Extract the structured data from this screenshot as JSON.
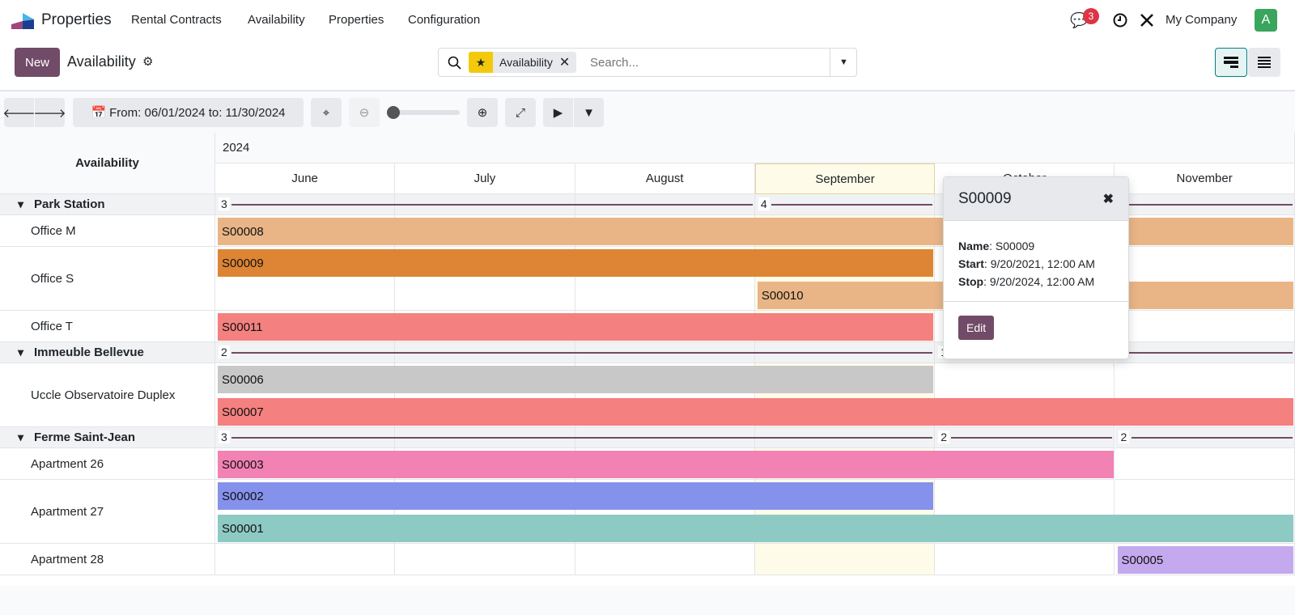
{
  "nav": {
    "brand": "Properties",
    "menu": [
      "Rental Contracts",
      "Availability",
      "Properties",
      "Configuration"
    ],
    "messages_count": "3",
    "company": "My Company",
    "avatar": "A",
    "avatar_color": "#3aa55d"
  },
  "control": {
    "new_label": "New",
    "title": "Availability",
    "facet_label": "Availability",
    "search_placeholder": "Search..."
  },
  "toolbar": {
    "range_label": "From: 06/01/2024 to: 11/30/2024",
    "zoom_level": 0
  },
  "gantt": {
    "row_header": "Availability",
    "year": "2024",
    "months": [
      "June",
      "July",
      "August",
      "September",
      "October",
      "November"
    ],
    "highlight_month": 3,
    "rows": [
      {
        "type": "group",
        "label": "Park Station",
        "aggs": [
          {
            "label": "3",
            "from": 0,
            "to": 3
          },
          {
            "label": "4",
            "from": 3,
            "to": 4
          },
          {
            "label": "",
            "from": 4,
            "to": 6
          }
        ]
      },
      {
        "type": "row",
        "label": "Office M",
        "lanes": 1,
        "bars": [
          {
            "name": "S00008",
            "from": 0,
            "to": 6,
            "lane": 0,
            "color": "#e9b586"
          }
        ]
      },
      {
        "type": "row",
        "label": "Office S",
        "lanes": 2,
        "bars": [
          {
            "name": "S00009",
            "from": 0,
            "to": 4,
            "lane": 0,
            "color": "#dd8534"
          },
          {
            "name": "S00010",
            "from": 3,
            "to": 6,
            "lane": 1,
            "color": "#e9b586"
          }
        ]
      },
      {
        "type": "row",
        "label": "Office T",
        "lanes": 1,
        "bars": [
          {
            "name": "S00011",
            "from": 0,
            "to": 4,
            "lane": 0,
            "color": "#f48080"
          }
        ]
      },
      {
        "type": "group",
        "label": "Immeuble Bellevue",
        "aggs": [
          {
            "label": "2",
            "from": 0,
            "to": 4
          },
          {
            "label": "1",
            "from": 4,
            "to": 6
          }
        ]
      },
      {
        "type": "row",
        "label": "Uccle Observatoire Duplex",
        "lanes": 2,
        "bars": [
          {
            "name": "S00006",
            "from": 0,
            "to": 4,
            "lane": 0,
            "color": "#c8c8c8"
          },
          {
            "name": "S00007",
            "from": 0,
            "to": 6,
            "lane": 1,
            "color": "#f48080"
          }
        ]
      },
      {
        "type": "group",
        "label": "Ferme Saint-Jean",
        "aggs": [
          {
            "label": "3",
            "from": 0,
            "to": 4
          },
          {
            "label": "2",
            "from": 4,
            "to": 5
          },
          {
            "label": "2",
            "from": 5,
            "to": 6
          }
        ]
      },
      {
        "type": "row",
        "label": "Apartment 26",
        "lanes": 1,
        "bars": [
          {
            "name": "S00003",
            "from": 0,
            "to": 5,
            "lane": 0,
            "color": "#f282b4"
          }
        ]
      },
      {
        "type": "row",
        "label": "Apartment 27",
        "lanes": 2,
        "bars": [
          {
            "name": "S00002",
            "from": 0,
            "to": 4,
            "lane": 0,
            "color": "#8592ec"
          },
          {
            "name": "S00001",
            "from": 0,
            "to": 6,
            "lane": 1,
            "color": "#8ecac4"
          }
        ]
      },
      {
        "type": "row",
        "label": "Apartment 28",
        "lanes": 1,
        "bars": [
          {
            "name": "S00005",
            "from": 5,
            "to": 6,
            "lane": 0,
            "color": "#c4a9ee"
          }
        ]
      }
    ]
  },
  "popover": {
    "title": "S00009",
    "fields": [
      {
        "label": "Name",
        "value": "S00009"
      },
      {
        "label": "Start",
        "value": "9/20/2021, 12:00 AM"
      },
      {
        "label": "Stop",
        "value": "9/20/2024, 12:00 AM"
      }
    ],
    "edit_label": "Edit"
  }
}
